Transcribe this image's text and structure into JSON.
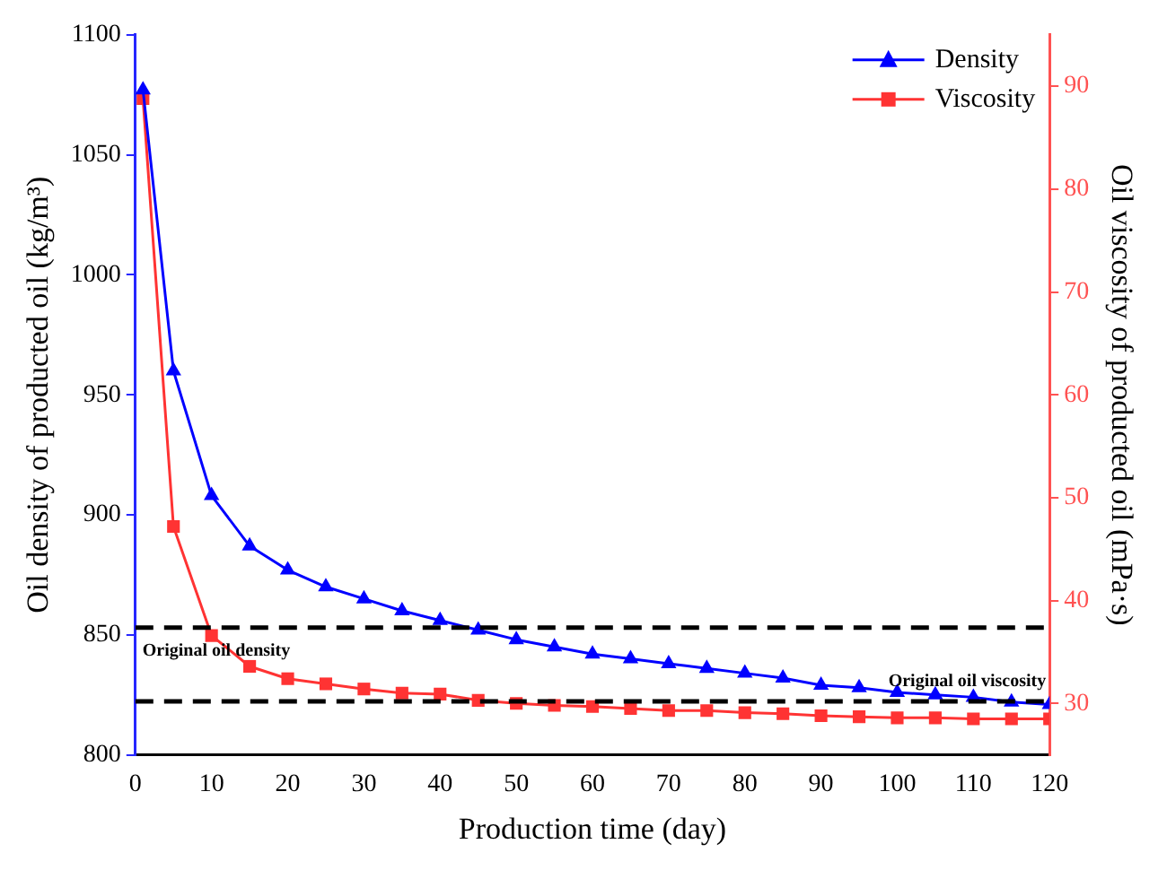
{
  "chart_data": {
    "type": "line",
    "xlabel": "Production time (day)",
    "ylabel": "Oil density of producted oil (kg/m³)",
    "y2label": "Oil viscosity of producted oil (mPa·s)",
    "x": [
      1,
      5,
      10,
      15,
      20,
      25,
      30,
      35,
      40,
      45,
      50,
      55,
      60,
      65,
      70,
      75,
      80,
      85,
      90,
      95,
      100,
      105,
      110,
      115,
      120
    ],
    "series": [
      {
        "name": "Density",
        "color": "#0000ff",
        "marker": "triangle",
        "axis": "y",
        "values": [
          1077,
          960,
          908,
          887,
          877,
          870,
          865,
          860,
          856,
          852,
          848,
          845,
          842,
          840,
          838,
          836,
          834,
          832,
          829,
          828,
          826,
          825,
          824,
          822,
          821
        ]
      },
      {
        "name": "Viscosity",
        "color": "#ff3333",
        "marker": "square",
        "axis": "y2",
        "values": [
          88.8,
          47.2,
          36.6,
          33.6,
          32.4,
          31.9,
          31.4,
          31.0,
          30.9,
          30.3,
          30.0,
          29.8,
          29.7,
          29.5,
          29.3,
          29.3,
          29.1,
          29.0,
          28.8,
          28.7,
          28.6,
          28.6,
          28.5,
          28.5,
          28.5
        ]
      }
    ],
    "xlim": [
      0,
      120
    ],
    "xticks": [
      0,
      10,
      20,
      30,
      40,
      50,
      60,
      70,
      80,
      90,
      100,
      110,
      120
    ],
    "ylim": [
      800,
      1100
    ],
    "yticks": [
      800,
      850,
      900,
      950,
      1000,
      1050,
      1100
    ],
    "y2lim": [
      25,
      95
    ],
    "y2ticks": [
      30,
      40,
      50,
      60,
      70,
      80,
      90
    ],
    "ref_lines": [
      {
        "axis": "y",
        "value": 853,
        "label": "Original oil density",
        "color": "#000000",
        "line_style": "dashed"
      },
      {
        "axis": "y2",
        "value": 30.2,
        "label": "Original oil viscosity",
        "color": "#000000",
        "line_style": "dashed"
      }
    ],
    "legend": "top right",
    "grid": false
  }
}
